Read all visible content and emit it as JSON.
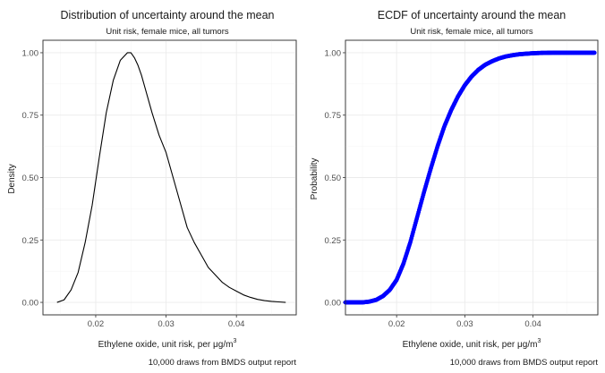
{
  "chart_data": [
    {
      "type": "line",
      "title": "Distribution of uncertainty around the mean",
      "subtitle": "Unit risk, female mice, all tumors",
      "xlabel": "Ethylene oxide, unit risk, per μg/m",
      "xlabel_sup": "3",
      "ylabel": "Density",
      "caption": "10,000 draws from BMDS output report",
      "xlim": [
        0.0125,
        0.0485
      ],
      "ylim": [
        -0.05,
        1.05
      ],
      "xticks": [
        0.02,
        0.03,
        0.04
      ],
      "xtick_labels": [
        "0.02",
        "0.03",
        "0.04"
      ],
      "yticks": [
        0.0,
        0.25,
        0.5,
        0.75,
        1.0
      ],
      "ytick_labels": [
        "0.00",
        "0.25",
        "0.50",
        "0.75",
        "1.00"
      ],
      "grid": true,
      "line_color": "#000000",
      "x": [
        0.0145,
        0.0155,
        0.0165,
        0.0175,
        0.0185,
        0.0195,
        0.0205,
        0.0215,
        0.0225,
        0.0235,
        0.0245,
        0.025,
        0.0255,
        0.026,
        0.0265,
        0.027,
        0.028,
        0.029,
        0.03,
        0.031,
        0.032,
        0.033,
        0.034,
        0.035,
        0.036,
        0.037,
        0.038,
        0.039,
        0.04,
        0.041,
        0.042,
        0.043,
        0.044,
        0.045,
        0.046,
        0.047
      ],
      "y": [
        0.0,
        0.01,
        0.05,
        0.12,
        0.24,
        0.39,
        0.58,
        0.76,
        0.89,
        0.97,
        1.0,
        1.0,
        0.98,
        0.95,
        0.91,
        0.86,
        0.76,
        0.67,
        0.6,
        0.5,
        0.4,
        0.3,
        0.24,
        0.19,
        0.14,
        0.11,
        0.08,
        0.06,
        0.045,
        0.03,
        0.02,
        0.012,
        0.007,
        0.004,
        0.002,
        0.0
      ]
    },
    {
      "type": "scatter",
      "title": "ECDF of uncertainty around the mean",
      "subtitle": "Unit risk, female mice, all tumors",
      "xlabel": "Ethylene oxide, unit risk, per μg/m",
      "xlabel_sup": "3",
      "ylabel": "Probability",
      "caption": "10,000 draws from BMDS output report",
      "xlim": [
        0.0125,
        0.0495
      ],
      "ylim": [
        -0.05,
        1.05
      ],
      "xticks": [
        0.02,
        0.03,
        0.04
      ],
      "xtick_labels": [
        "0.02",
        "0.03",
        "0.04"
      ],
      "yticks": [
        0.0,
        0.25,
        0.5,
        0.75,
        1.0
      ],
      "ytick_labels": [
        "0.00",
        "0.25",
        "0.50",
        "0.75",
        "1.00"
      ],
      "grid": true,
      "point_color": "#0000ff",
      "x": [
        0.0125,
        0.014,
        0.015,
        0.016,
        0.017,
        0.018,
        0.019,
        0.02,
        0.021,
        0.022,
        0.023,
        0.024,
        0.025,
        0.026,
        0.027,
        0.028,
        0.029,
        0.03,
        0.031,
        0.032,
        0.033,
        0.034,
        0.035,
        0.036,
        0.037,
        0.038,
        0.039,
        0.04,
        0.041,
        0.042,
        0.043,
        0.044,
        0.045,
        0.046,
        0.047,
        0.048,
        0.049
      ],
      "y": [
        0.0,
        0.0,
        0.0,
        0.003,
        0.01,
        0.025,
        0.05,
        0.09,
        0.155,
        0.24,
        0.34,
        0.44,
        0.535,
        0.625,
        0.705,
        0.77,
        0.825,
        0.87,
        0.905,
        0.932,
        0.952,
        0.966,
        0.977,
        0.985,
        0.99,
        0.994,
        0.996,
        0.998,
        0.999,
        0.9995,
        1.0,
        1.0,
        1.0,
        1.0,
        1.0,
        1.0,
        1.0
      ]
    }
  ]
}
